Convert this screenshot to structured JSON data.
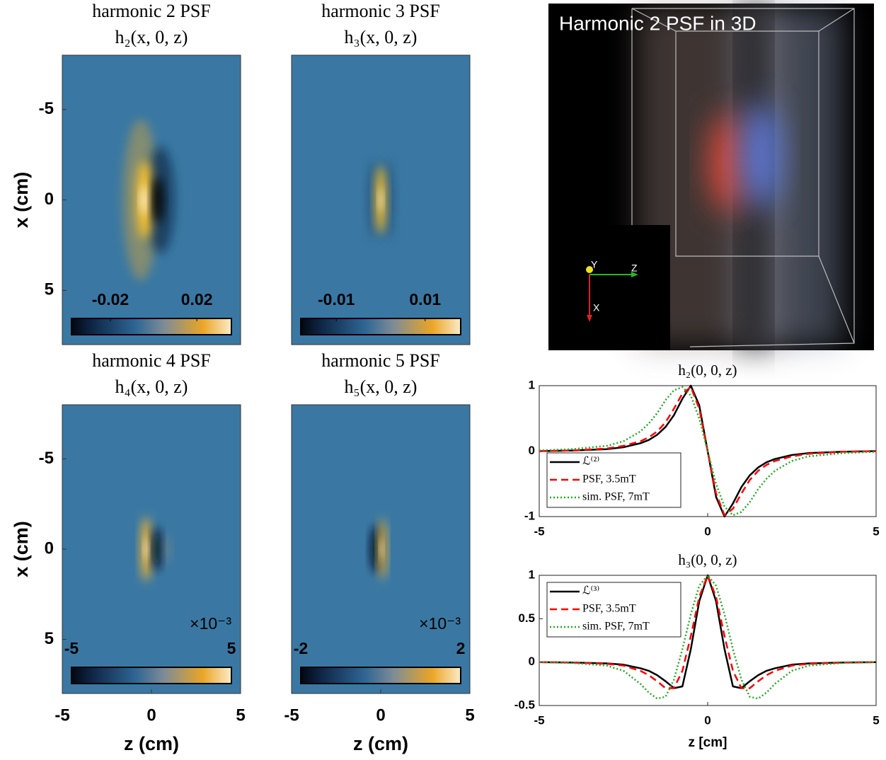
{
  "chart_data": [
    {
      "type": "heatmap",
      "title": [
        "harmonic 2 PSF",
        "h₂(x, 0, z)"
      ],
      "ylabel": "x (cm)",
      "xlim": [
        -5,
        5
      ],
      "ylim": [
        -8,
        8
      ],
      "yticks": [
        -5,
        0,
        5
      ],
      "colorbar": {
        "clim": [
          -0.038,
          0.036
        ],
        "ticks": [
          -0.02,
          0.02
        ]
      }
    },
    {
      "type": "heatmap",
      "title": [
        "harmonic 3 PSF",
        "h₃(x, 0, z)"
      ],
      "xlim": [
        -5,
        5
      ],
      "ylim": [
        -8,
        8
      ],
      "colorbar": {
        "clim": [
          -0.018,
          0.018
        ],
        "ticks": [
          -0.01,
          0.01
        ]
      }
    },
    {
      "type": "heatmap",
      "title": [
        "harmonic 4 PSF",
        "h₄(x, 0, z)"
      ],
      "xlabel": "z (cm)",
      "ylabel": "x (cm)",
      "xlim": [
        -5,
        5
      ],
      "ylim": [
        -8,
        8
      ],
      "xticks": [
        -5,
        0,
        5
      ],
      "yticks": [
        -5,
        0,
        5
      ],
      "colorbar": {
        "clim": [
          -5,
          5
        ],
        "ticks": [
          -5,
          5
        ],
        "multiplier": "×10⁻³"
      }
    },
    {
      "type": "heatmap",
      "title": [
        "harmonic 5 PSF",
        "h₅(x, 0, z)"
      ],
      "xlabel": "z (cm)",
      "xlim": [
        -5,
        5
      ],
      "ylim": [
        -8,
        8
      ],
      "xticks": [
        -5,
        0,
        5
      ],
      "colorbar": {
        "clim": [
          -2,
          2
        ],
        "ticks": [
          -2,
          2
        ],
        "multiplier": "×10⁻³"
      }
    },
    {
      "type": "line",
      "title": "h₂(0, 0, z)",
      "xlim": [
        -5,
        5
      ],
      "ylim": [
        -1,
        1
      ],
      "xticks": [
        -5,
        0,
        5
      ],
      "yticks": [
        -1,
        0,
        1
      ],
      "legend": "lower left",
      "x": [
        -5,
        -4,
        -3,
        -2.5,
        -2,
        -1.75,
        -1.5,
        -1.25,
        -1,
        -0.75,
        -0.5,
        -0.25,
        0,
        0.25,
        0.5,
        0.75,
        1,
        1.25,
        1.5,
        1.75,
        2,
        2.5,
        3,
        4,
        5
      ],
      "series": [
        {
          "name": "ℒ⁽²⁾",
          "color": "#000000",
          "dash": "solid",
          "values": [
            0,
            0.01,
            0.03,
            0.06,
            0.12,
            0.17,
            0.25,
            0.37,
            0.55,
            0.8,
            1.0,
            0.7,
            0,
            -0.7,
            -1.0,
            -0.8,
            -0.55,
            -0.37,
            -0.25,
            -0.17,
            -0.12,
            -0.06,
            -0.03,
            -0.01,
            0
          ]
        },
        {
          "name": "PSF, 3.5mT",
          "color": "#ff0000",
          "dash": "dashed",
          "values": [
            0,
            0.01,
            0.04,
            0.08,
            0.15,
            0.21,
            0.3,
            0.44,
            0.65,
            0.88,
            0.98,
            0.65,
            0,
            -0.65,
            -0.98,
            -0.88,
            -0.65,
            -0.44,
            -0.3,
            -0.21,
            -0.15,
            -0.08,
            -0.04,
            -0.01,
            0
          ]
        },
        {
          "name": "sim. PSF, 7mT",
          "color": "#22aa22",
          "dash": "dotted",
          "values": [
            0.01,
            0.03,
            0.08,
            0.15,
            0.3,
            0.42,
            0.58,
            0.78,
            0.93,
            0.98,
            0.85,
            0.5,
            0,
            -0.5,
            -0.85,
            -0.98,
            -0.93,
            -0.78,
            -0.58,
            -0.42,
            -0.3,
            -0.15,
            -0.08,
            -0.03,
            -0.01
          ]
        }
      ]
    },
    {
      "type": "line",
      "title": "h₃(0, 0, z)",
      "xlabel": "z [cm]",
      "xlim": [
        -5,
        5
      ],
      "ylim": [
        -0.5,
        1
      ],
      "xticks": [
        -5,
        0,
        5
      ],
      "yticks": [
        -0.5,
        0,
        0.5,
        1
      ],
      "legend": "upper left",
      "x": [
        -5,
        -4,
        -3,
        -2.5,
        -2,
        -1.75,
        -1.5,
        -1.25,
        -1,
        -0.75,
        -0.5,
        -0.25,
        0,
        0.25,
        0.5,
        0.75,
        1,
        1.25,
        1.5,
        1.75,
        2,
        2.5,
        3,
        4,
        5
      ],
      "series": [
        {
          "name": "ℒ⁽³⁾",
          "color": "#000000",
          "dash": "solid",
          "values": [
            0,
            -0.005,
            -0.015,
            -0.03,
            -0.07,
            -0.1,
            -0.15,
            -0.22,
            -0.3,
            -0.28,
            0.15,
            0.7,
            1,
            0.7,
            0.15,
            -0.28,
            -0.3,
            -0.22,
            -0.15,
            -0.1,
            -0.07,
            -0.03,
            -0.015,
            -0.005,
            0
          ]
        },
        {
          "name": "PSF, 3.5mT",
          "color": "#ff0000",
          "dash": "dashed",
          "values": [
            0,
            -0.005,
            -0.02,
            -0.04,
            -0.1,
            -0.15,
            -0.22,
            -0.3,
            -0.3,
            -0.1,
            0.3,
            0.75,
            1,
            0.75,
            0.3,
            -0.1,
            -0.3,
            -0.3,
            -0.22,
            -0.15,
            -0.1,
            -0.04,
            -0.02,
            -0.005,
            0
          ]
        },
        {
          "name": "sim. PSF, 7mT",
          "color": "#22aa22",
          "dash": "dotted",
          "values": [
            0,
            -0.01,
            -0.04,
            -0.1,
            -0.25,
            -0.35,
            -0.42,
            -0.4,
            -0.2,
            0.15,
            0.55,
            0.88,
            1,
            0.88,
            0.55,
            0.15,
            -0.2,
            -0.4,
            -0.42,
            -0.35,
            -0.25,
            -0.1,
            -0.04,
            -0.01,
            0
          ]
        }
      ]
    }
  ],
  "render": {
    "title": "Harmonic 2 PSF in 3D",
    "axes": [
      "Y",
      "Z",
      "X"
    ]
  }
}
